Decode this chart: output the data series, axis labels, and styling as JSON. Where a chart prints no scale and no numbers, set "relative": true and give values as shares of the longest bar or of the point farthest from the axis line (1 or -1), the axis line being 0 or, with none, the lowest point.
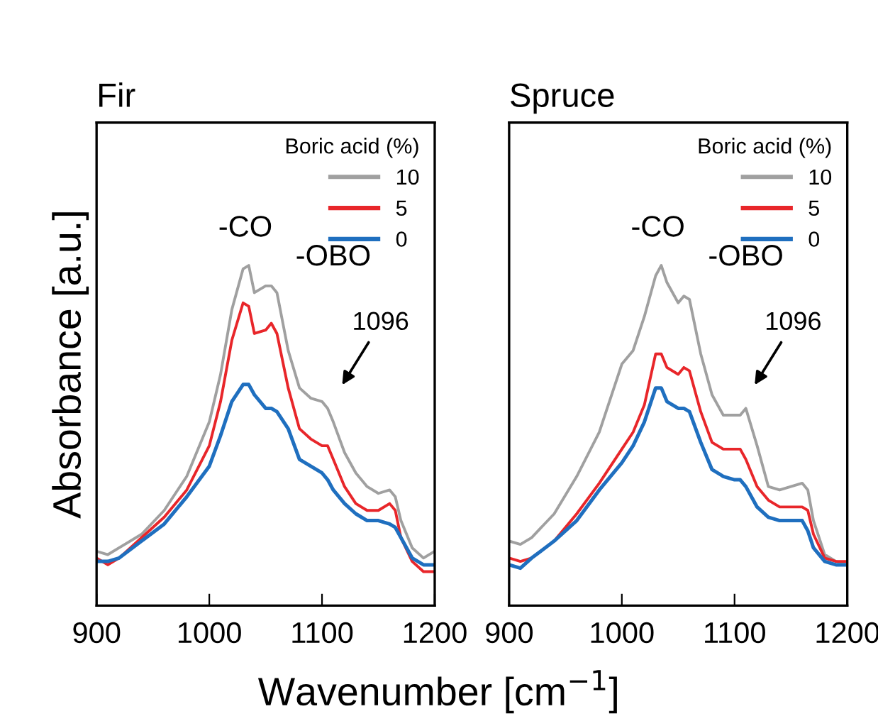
{
  "chart_data": [
    {
      "type": "line",
      "title": "Fir",
      "ylabel": "Absorbance [a.u.]",
      "xlabel": "Wavenumber [cm$^{−1}$]",
      "legend_title": "Boric acid (%)",
      "legend": "top right",
      "relative": true,
      "xlim": [
        900,
        1200
      ],
      "xticks": [
        900,
        1000,
        1100,
        1200
      ],
      "grid": false,
      "line_style": "solid",
      "marker": "none",
      "x": [
        900,
        910,
        920,
        940,
        960,
        980,
        1000,
        1010,
        1020,
        1030,
        1035,
        1040,
        1050,
        1055,
        1060,
        1070,
        1080,
        1090,
        1100,
        1105,
        1110,
        1120,
        1130,
        1140,
        1150,
        1160,
        1165,
        1170,
        1180,
        1190,
        1200
      ],
      "annotations": [
        "-CO",
        "-OBO",
        "1096"
      ],
      "series": [
        {
          "name": "10",
          "color": "#a0a0a0",
          "values": [
            0.16,
            0.15,
            0.17,
            0.21,
            0.28,
            0.38,
            0.54,
            0.68,
            0.87,
            0.99,
            1.0,
            0.92,
            0.94,
            0.94,
            0.92,
            0.75,
            0.64,
            0.61,
            0.6,
            0.58,
            0.54,
            0.45,
            0.39,
            0.35,
            0.33,
            0.34,
            0.32,
            0.25,
            0.17,
            0.14,
            0.16
          ]
        },
        {
          "name": "5",
          "color": "#e8262a",
          "values": [
            0.14,
            0.12,
            0.14,
            0.2,
            0.26,
            0.34,
            0.47,
            0.6,
            0.78,
            0.89,
            0.88,
            0.8,
            0.81,
            0.83,
            0.8,
            0.64,
            0.52,
            0.49,
            0.47,
            0.47,
            0.43,
            0.35,
            0.3,
            0.28,
            0.28,
            0.3,
            0.28,
            0.2,
            0.13,
            0.1,
            0.1
          ]
        },
        {
          "name": "0",
          "color": "#1f6fbf",
          "values": [
            0.13,
            0.13,
            0.14,
            0.19,
            0.24,
            0.32,
            0.41,
            0.5,
            0.6,
            0.65,
            0.65,
            0.62,
            0.58,
            0.58,
            0.57,
            0.52,
            0.43,
            0.41,
            0.39,
            0.37,
            0.34,
            0.3,
            0.27,
            0.25,
            0.25,
            0.24,
            0.23,
            0.2,
            0.14,
            0.12,
            0.12
          ]
        }
      ]
    },
    {
      "type": "line",
      "title": "Spruce",
      "legend_title": "Boric acid (%)",
      "legend": "top right",
      "relative": true,
      "xlim": [
        900,
        1200
      ],
      "xticks": [
        900,
        1000,
        1100,
        1200
      ],
      "grid": false,
      "line_style": "solid",
      "marker": "none",
      "x": [
        900,
        910,
        920,
        940,
        960,
        980,
        1000,
        1010,
        1020,
        1030,
        1035,
        1040,
        1050,
        1055,
        1060,
        1070,
        1080,
        1090,
        1100,
        1105,
        1110,
        1120,
        1130,
        1140,
        1150,
        1160,
        1165,
        1170,
        1180,
        1190,
        1200
      ],
      "annotations": [
        "-CO",
        "-OBO",
        "1096"
      ],
      "series": [
        {
          "name": "10",
          "color": "#a0a0a0",
          "values": [
            0.19,
            0.18,
            0.2,
            0.27,
            0.38,
            0.51,
            0.71,
            0.75,
            0.85,
            0.97,
            1.0,
            0.95,
            0.89,
            0.91,
            0.9,
            0.74,
            0.62,
            0.56,
            0.56,
            0.56,
            0.58,
            0.47,
            0.35,
            0.34,
            0.35,
            0.36,
            0.34,
            0.25,
            0.15,
            0.13,
            0.12
          ]
        },
        {
          "name": "5",
          "color": "#e8262a",
          "values": [
            0.14,
            0.13,
            0.14,
            0.19,
            0.27,
            0.36,
            0.46,
            0.51,
            0.59,
            0.74,
            0.74,
            0.7,
            0.68,
            0.7,
            0.69,
            0.57,
            0.48,
            0.46,
            0.46,
            0.46,
            0.43,
            0.35,
            0.31,
            0.29,
            0.29,
            0.29,
            0.28,
            0.21,
            0.14,
            0.13,
            0.13
          ]
        },
        {
          "name": "0",
          "color": "#1f6fbf",
          "values": [
            0.12,
            0.11,
            0.14,
            0.19,
            0.25,
            0.34,
            0.42,
            0.47,
            0.54,
            0.64,
            0.64,
            0.6,
            0.58,
            0.58,
            0.57,
            0.48,
            0.4,
            0.38,
            0.37,
            0.37,
            0.35,
            0.29,
            0.26,
            0.25,
            0.25,
            0.25,
            0.22,
            0.17,
            0.13,
            0.12,
            0.12
          ]
        }
      ]
    }
  ]
}
